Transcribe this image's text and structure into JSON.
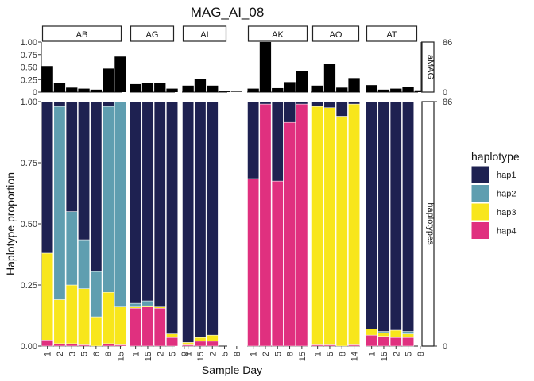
{
  "chart_data": {
    "type": "bar",
    "title": "MAG_AI_08",
    "xlabel": "Sample Day",
    "ylabel": "Haplotype proportion",
    "ylim": [
      0,
      1
    ],
    "y_ticks": [
      "0.00",
      "0.25",
      "0.50",
      "0.75",
      "1.00"
    ],
    "top_y_ticks": [
      "0",
      "0.25",
      "0.50",
      "0.75",
      "1.00"
    ],
    "right_axis_ticks": [
      "86",
      "0"
    ],
    "right_axis_max": 86,
    "top_strip_label": "aMAG",
    "main_strip_label": "haplotypes",
    "legend": {
      "title": "haplotype",
      "placement": "right",
      "series": [
        {
          "name": "hap1",
          "color": "#1e2151"
        },
        {
          "name": "hap2",
          "color": "#5f9eb0"
        },
        {
          "name": "hap3",
          "color": "#f8e61c"
        },
        {
          "name": "hap4",
          "color": "#e0307f"
        }
      ]
    },
    "facets": [
      {
        "name": "AB",
        "days": [
          "1",
          "2",
          "3",
          "5",
          "6",
          "8",
          "15"
        ],
        "amag": [
          0.52,
          0.19,
          0.09,
          0.07,
          0.05,
          0.47,
          0.71
        ],
        "stacks": [
          [
            0.62,
            0.0,
            0.355,
            0.025
          ],
          [
            0.02,
            0.79,
            0.18,
            0.01
          ],
          [
            0.45,
            0.3,
            0.24,
            0.01
          ],
          [
            0.565,
            0.2,
            0.23,
            0.005
          ],
          [
            0.695,
            0.185,
            0.12,
            0.0
          ],
          [
            0.02,
            0.76,
            0.21,
            0.01
          ],
          [
            0.0,
            0.84,
            0.155,
            0.005
          ]
        ]
      },
      {
        "name": "AG",
        "days": [
          "1",
          "15",
          "2",
          "5",
          "8"
        ],
        "amag": [
          0.16,
          0.18,
          0.18,
          0.07,
          0.0
        ],
        "stacks": [
          [
            0.825,
            0.015,
            0.005,
            0.155
          ],
          [
            0.815,
            0.02,
            0.005,
            0.16
          ],
          [
            0.84,
            0.0,
            0.005,
            0.155
          ],
          [
            0.95,
            0.0,
            0.015,
            0.035
          ],
          [
            0.0,
            0.0,
            0.0,
            0.0
          ]
        ]
      },
      {
        "name": "AI",
        "days": [
          "1",
          "15",
          "2",
          "5",
          "8"
        ],
        "amag": [
          0.13,
          0.26,
          0.13,
          0.015,
          0.01
        ],
        "stacks": [
          [
            0.985,
            0.0,
            0.01,
            0.005
          ],
          [
            0.965,
            0.0,
            0.015,
            0.02
          ],
          [
            0.955,
            0.0,
            0.025,
            0.02
          ],
          [
            0.0,
            0.0,
            0.0,
            0.0
          ],
          [
            0.0,
            0.0,
            0.0,
            0.0
          ]
        ]
      },
      {
        "name": "AK",
        "days": [
          "1",
          "2",
          "5",
          "8",
          "15"
        ],
        "amag": [
          0.07,
          1.0,
          0.08,
          0.2,
          0.42
        ],
        "stacks": [
          [
            0.315,
            0.0,
            0.0,
            0.685
          ],
          [
            0.01,
            0.0,
            0.0,
            0.99
          ],
          [
            0.325,
            0.0,
            0.0,
            0.675
          ],
          [
            0.085,
            0.0,
            0.0,
            0.915
          ],
          [
            0.01,
            0.0,
            0.0,
            0.99
          ]
        ]
      },
      {
        "name": "AO",
        "days": [
          "1",
          "5",
          "8",
          "14"
        ],
        "amag": [
          0.13,
          0.56,
          0.09,
          0.28
        ],
        "stacks": [
          [
            0.02,
            0.0,
            0.975,
            0.005
          ],
          [
            0.025,
            0.0,
            0.97,
            0.005
          ],
          [
            0.06,
            0.0,
            0.94,
            0.0
          ],
          [
            0.01,
            0.0,
            0.985,
            0.005
          ]
        ]
      },
      {
        "name": "AT",
        "days": [
          "1",
          "15",
          "2",
          "5",
          "8"
        ],
        "amag": [
          0.14,
          0.05,
          0.07,
          0.1,
          0.02
        ],
        "stacks": [
          [
            0.93,
            0.0,
            0.025,
            0.045
          ],
          [
            0.94,
            0.005,
            0.015,
            0.04
          ],
          [
            0.935,
            0.0,
            0.03,
            0.035
          ],
          [
            0.94,
            0.01,
            0.015,
            0.035
          ],
          [
            0.0,
            0.0,
            0.0,
            0.0
          ]
        ]
      }
    ]
  }
}
